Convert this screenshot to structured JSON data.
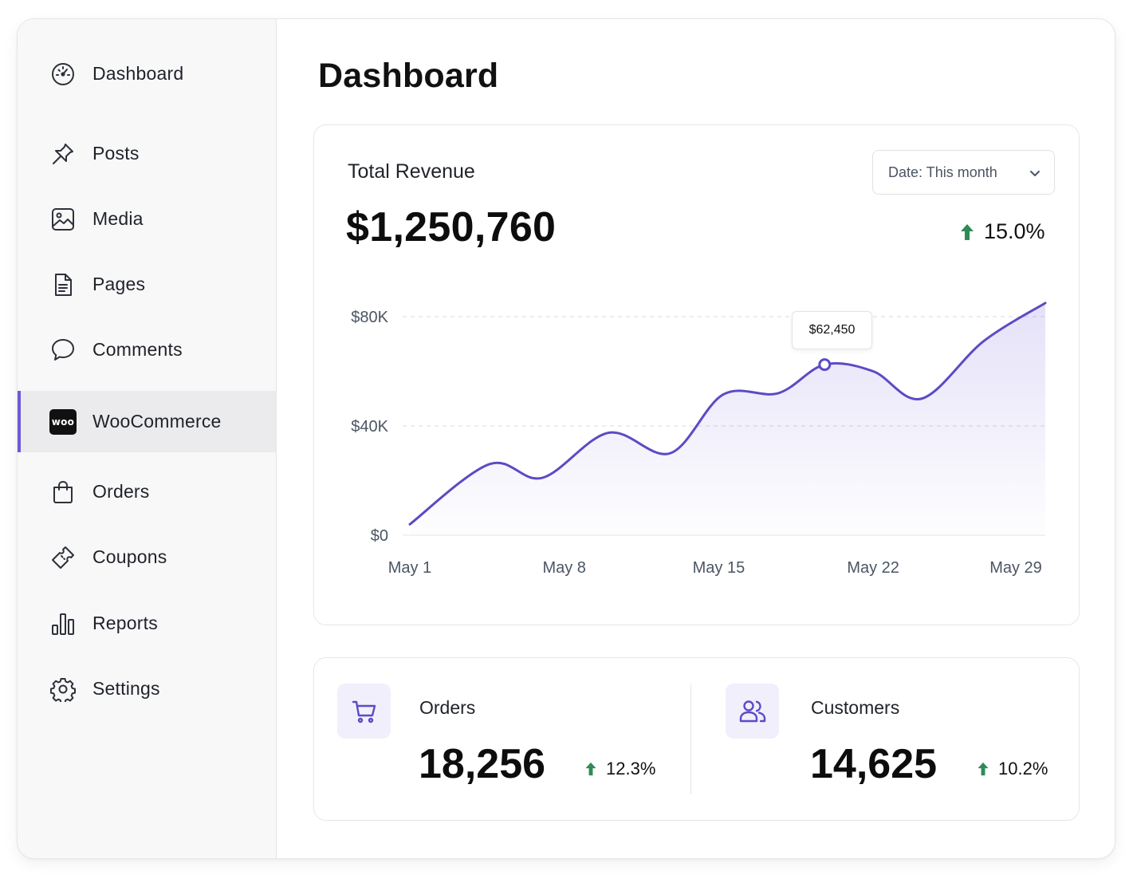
{
  "sidebar": {
    "items": [
      {
        "label": "Dashboard",
        "icon": "dashboard-gauge-icon"
      },
      {
        "label": "Posts",
        "icon": "pin-icon"
      },
      {
        "label": "Media",
        "icon": "image-icon"
      },
      {
        "label": "Pages",
        "icon": "document-icon"
      },
      {
        "label": "Comments",
        "icon": "comment-bubble-icon"
      },
      {
        "label": "WooCommerce",
        "icon": "woo-logo-icon",
        "badge": "woo",
        "active": true
      },
      {
        "label": "Orders",
        "icon": "shopping-bag-icon"
      },
      {
        "label": "Coupons",
        "icon": "ticket-icon"
      },
      {
        "label": "Reports",
        "icon": "bar-chart-icon"
      },
      {
        "label": "Settings",
        "icon": "gear-icon"
      }
    ]
  },
  "main": {
    "title": "Dashboard",
    "revenue": {
      "title": "Total Revenue",
      "value": "$1,250,760",
      "date_filter": "Date: This month",
      "change": "15.0%",
      "change_direction": "up",
      "tooltip": "$62,450"
    },
    "stats": [
      {
        "label": "Orders",
        "value": "18,256",
        "change": "12.3%",
        "icon": "shopping-cart-icon"
      },
      {
        "label": "Customers",
        "value": "14,625",
        "change": "10.2%",
        "icon": "users-icon"
      }
    ]
  },
  "colors": {
    "accent": "#5b4bc4",
    "positive": "#2e8b57",
    "active_indicator": "#6b5bd4"
  },
  "chart_data": {
    "type": "area",
    "title": "",
    "xlabel": "",
    "ylabel": "",
    "ylim": [
      0,
      85000
    ],
    "y_ticks": [
      "$0",
      "$40K",
      "$80K"
    ],
    "y_tick_values": [
      0,
      40000,
      80000
    ],
    "x_ticks": [
      "May 1",
      "May 8",
      "May 15",
      "May 22",
      "May 29"
    ],
    "grid": "dashed horizontal",
    "x": [
      1,
      4.6,
      7,
      10,
      12.8,
      15.2,
      17.7,
      19.8,
      22,
      24.2,
      27,
      29.8
    ],
    "values": [
      4000,
      26000,
      21000,
      37500,
      30000,
      51500,
      52000,
      62450,
      60000,
      50000,
      71000,
      85000
    ],
    "highlight": {
      "x": 19.8,
      "value": 62450
    }
  }
}
